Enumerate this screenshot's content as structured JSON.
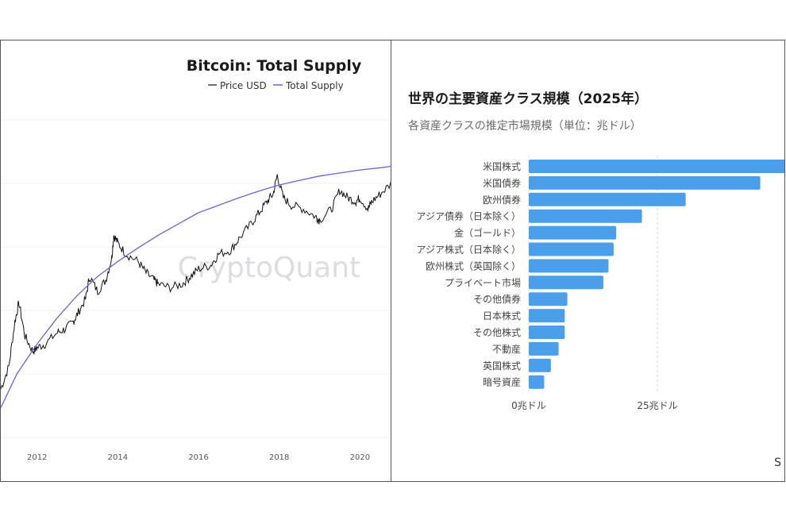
{
  "chart_data": [
    {
      "type": "line",
      "title": "Bitcoin: Total Supply",
      "legend": [
        "Price USD",
        "Total Supply"
      ],
      "legend_placement": "top-center",
      "watermark": "CryptoQuant",
      "x_ticks": [
        "2012",
        "2014",
        "2016",
        "2018",
        "2020"
      ],
      "xlim": [
        2011.1,
        2020.8
      ],
      "grid": true,
      "colors": {
        "price": "#111111",
        "supply": "#6b63d9"
      },
      "series": [
        {
          "name": "Price USD",
          "x": [
            2011.1,
            2011.3,
            2011.45,
            2011.55,
            2011.7,
            2011.9,
            2012.0,
            2012.2,
            2012.5,
            2012.7,
            2012.9,
            2013.0,
            2013.2,
            2013.3,
            2013.5,
            2013.7,
            2013.85,
            2013.9,
            2014.0,
            2014.2,
            2014.5,
            2014.7,
            2014.9,
            2015.0,
            2015.3,
            2015.6,
            2015.8,
            2016.0,
            2016.3,
            2016.5,
            2016.8,
            2017.0,
            2017.3,
            2017.5,
            2017.7,
            2017.85,
            2017.95,
            2018.1,
            2018.3,
            2018.6,
            2018.9,
            2019.0,
            2019.3,
            2019.5,
            2019.7,
            2019.9,
            2020.0,
            2020.2,
            2020.3,
            2020.5,
            2020.8
          ],
          "y": [
            2.0,
            2.3,
            2.9,
            3.15,
            2.7,
            2.5,
            2.55,
            2.6,
            2.75,
            2.8,
            2.9,
            3.0,
            3.2,
            3.5,
            3.3,
            3.45,
            3.75,
            4.05,
            3.95,
            3.8,
            3.7,
            3.55,
            3.45,
            3.4,
            3.35,
            3.4,
            3.5,
            3.6,
            3.65,
            3.8,
            3.85,
            4.0,
            4.2,
            4.35,
            4.5,
            4.6,
            4.85,
            4.55,
            4.45,
            4.4,
            4.3,
            4.25,
            4.4,
            4.65,
            4.55,
            4.5,
            4.55,
            4.4,
            4.5,
            4.6,
            4.75
          ]
        },
        {
          "name": "Total Supply",
          "x": [
            2011.1,
            2011.5,
            2012.0,
            2012.5,
            2013.0,
            2013.5,
            2014.0,
            2014.5,
            2015.0,
            2015.5,
            2016.0,
            2016.5,
            2017.0,
            2017.5,
            2018.0,
            2018.5,
            2019.0,
            2019.5,
            2020.0,
            2020.5,
            2020.8
          ],
          "y": [
            1.75,
            2.2,
            2.6,
            2.95,
            3.25,
            3.5,
            3.7,
            3.88,
            4.05,
            4.2,
            4.35,
            4.45,
            4.55,
            4.64,
            4.72,
            4.78,
            4.84,
            4.88,
            4.92,
            4.95,
            4.97
          ]
        }
      ],
      "ylim": [
        1.3,
        5.8
      ]
    },
    {
      "type": "bar",
      "orientation": "horizontal",
      "title": "世界の主要資産クラス規模（2025年）",
      "subtitle": "各資産クラスの推定市場規模（単位：兆ドル）",
      "categories": [
        "米国株式",
        "米国債券",
        "欧州債券",
        "アジア債券（日本除く）",
        "金（ゴールド）",
        "アジア株式（日本除く）",
        "欧州株式（英国除く）",
        "プライベート市場",
        "その他債券",
        "日本株式",
        "その他株式",
        "不動産",
        "英国株式",
        "暗号資産"
      ],
      "values": [
        50.0,
        45.0,
        30.5,
        22.0,
        17.0,
        16.5,
        15.5,
        14.5,
        7.5,
        7.0,
        7.0,
        5.8,
        4.3,
        3.0
      ],
      "x_ticks": [
        "0兆ドル",
        "25兆ドル"
      ],
      "xlim": [
        0,
        50
      ],
      "bar_color": "#4a9eea",
      "grid": true,
      "corner_text": "S"
    }
  ]
}
